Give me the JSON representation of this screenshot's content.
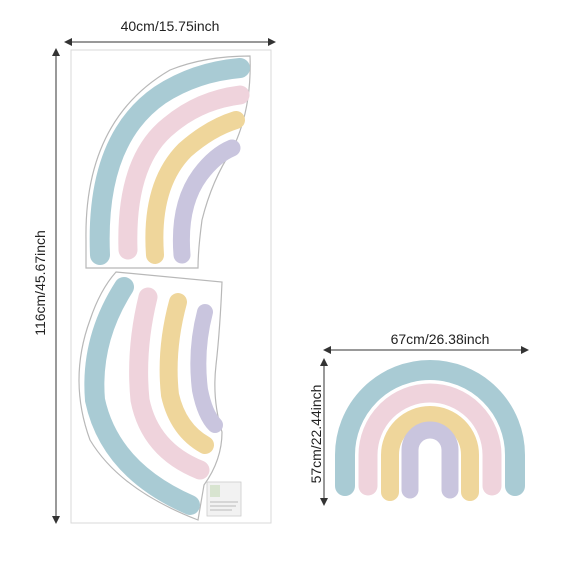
{
  "sheet": {
    "width_label": "40cm/15.75inch",
    "height_label": "116cm/45.67inch"
  },
  "assembled": {
    "width_label": "67cm/26.38inch",
    "height_label": "57cm/22.44inch"
  },
  "colors": {
    "blue": "#a9cbd4",
    "pink": "#efd3dc",
    "yellow": "#efd69b",
    "lavender": "#c9c5de",
    "outline": "#b5b5b5",
    "measure": "#333333"
  }
}
